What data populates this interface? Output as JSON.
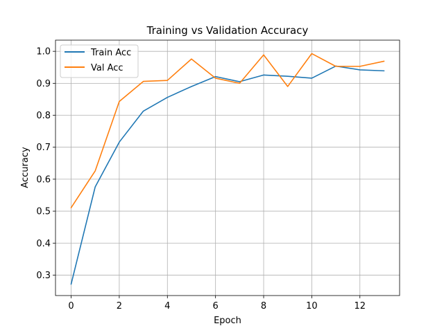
{
  "chart_data": {
    "type": "line",
    "title": "Training vs Validation Accuracy",
    "xlabel": "Epoch",
    "ylabel": "Accuracy",
    "x": [
      0,
      1,
      2,
      3,
      4,
      5,
      6,
      7,
      8,
      9,
      10,
      11,
      12,
      13
    ],
    "xlim": [
      -0.65,
      13.65
    ],
    "ylim": [
      0.236,
      1.035
    ],
    "xticks": [
      0,
      2,
      4,
      6,
      8,
      10,
      12
    ],
    "yticks": [
      0.3,
      0.4,
      0.5,
      0.6,
      0.7,
      0.8,
      0.9,
      1.0
    ],
    "xtick_labels": [
      "0",
      "2",
      "4",
      "6",
      "8",
      "10",
      "12"
    ],
    "ytick_labels": [
      "0.3",
      "0.4",
      "0.5",
      "0.6",
      "0.7",
      "0.8",
      "0.9",
      "1.0"
    ],
    "grid": true,
    "legend_position": "top-left",
    "series": [
      {
        "name": "Train Acc",
        "color": "#1f77b4",
        "values": [
          0.272,
          0.576,
          0.716,
          0.813,
          0.856,
          0.89,
          0.921,
          0.905,
          0.926,
          0.922,
          0.916,
          0.954,
          0.942,
          0.939
        ]
      },
      {
        "name": "Val Acc",
        "color": "#ff7f0e",
        "values": [
          0.511,
          0.626,
          0.843,
          0.906,
          0.909,
          0.976,
          0.916,
          0.9,
          0.989,
          0.89,
          0.993,
          0.953,
          0.953,
          0.969
        ]
      }
    ]
  }
}
